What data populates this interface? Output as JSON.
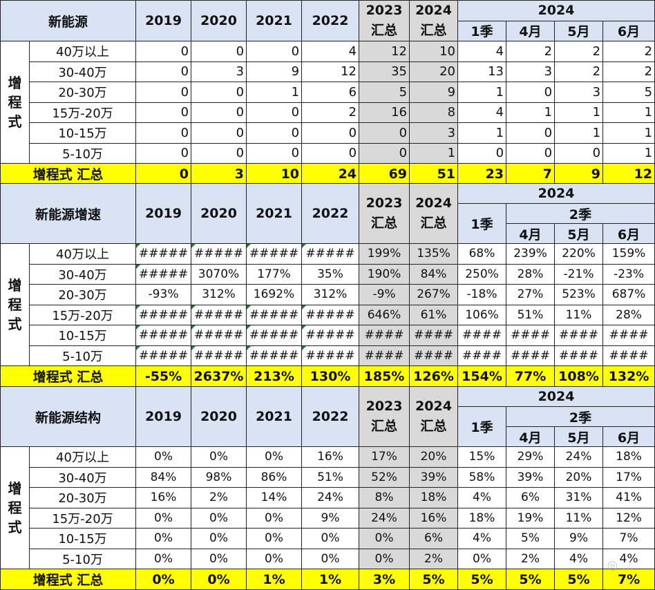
{
  "sections": [
    {
      "title": "新能源",
      "years": [
        "2019",
        "2020",
        "2021",
        "2022"
      ],
      "summary_years": [
        {
          "year": "2023",
          "sub": "汇总"
        },
        {
          "year": "2024",
          "sub": "汇总"
        }
      ],
      "group_year": "2024",
      "quarter_label": "",
      "months": [
        "1季",
        "4月",
        "5月",
        "6月"
      ],
      "side_label": "增程式",
      "rows": [
        {
          "label": "40万以上",
          "values": [
            "0",
            "0",
            "0",
            "4",
            "12",
            "10",
            "4",
            "2",
            "2",
            "2"
          ]
        },
        {
          "label": "30-40万",
          "values": [
            "0",
            "3",
            "9",
            "12",
            "35",
            "20",
            "13",
            "3",
            "2",
            "2"
          ]
        },
        {
          "label": "20-30万",
          "values": [
            "0",
            "0",
            "1",
            "6",
            "5",
            "9",
            "1",
            "0",
            "3",
            "5"
          ]
        },
        {
          "label": "15万-20万",
          "values": [
            "0",
            "0",
            "0",
            "2",
            "16",
            "8",
            "4",
            "1",
            "1",
            "1"
          ]
        },
        {
          "label": "10-15万",
          "values": [
            "0",
            "0",
            "0",
            "0",
            "0",
            "3",
            "1",
            "0",
            "1",
            "1"
          ]
        },
        {
          "label": "5-10万",
          "values": [
            "0",
            "0",
            "0",
            "0",
            "0",
            "1",
            "0",
            "0",
            "0",
            "1"
          ]
        }
      ],
      "total": {
        "label": "增程式 汇总",
        "values": [
          "0",
          "3",
          "10",
          "24",
          "69",
          "51",
          "23",
          "7",
          "9",
          "12"
        ]
      }
    },
    {
      "title": "新能源增速",
      "years": [
        "2019",
        "2020",
        "2021",
        "2022"
      ],
      "summary_years": [
        {
          "year": "2023",
          "sub": "汇总"
        },
        {
          "year": "2024",
          "sub": "汇总"
        }
      ],
      "group_year": "2024",
      "quarter_label": "2季",
      "months": [
        "1季",
        "4月",
        "5月",
        "6月"
      ],
      "side_label": "增程式",
      "rows": [
        {
          "label": "40万以上",
          "values": [
            "#####",
            "#####",
            "#####",
            "#####",
            "199%",
            "135%",
            "68%",
            "239%",
            "220%",
            "159%"
          ]
        },
        {
          "label": "30-40万",
          "values": [
            "#####",
            "3070%",
            "177%",
            "35%",
            "190%",
            "84%",
            "250%",
            "28%",
            "-21%",
            "-23%"
          ]
        },
        {
          "label": "20-30万",
          "values": [
            "-93%",
            "312%",
            "1692%",
            "312%",
            "-9%",
            "267%",
            "-18%",
            "27%",
            "523%",
            "687%"
          ]
        },
        {
          "label": "15万-20万",
          "values": [
            "#####",
            "#####",
            "#####",
            "#####",
            "646%",
            "61%",
            "106%",
            "51%",
            "11%",
            "28%"
          ]
        },
        {
          "label": "10-15万",
          "values": [
            "#####",
            "#####",
            "#####",
            "#####",
            "####",
            "####",
            "####",
            "####",
            "####",
            "####"
          ]
        },
        {
          "label": "5-10万",
          "values": [
            "#####",
            "#####",
            "#####",
            "#####",
            "####",
            "####",
            "####",
            "####",
            "####",
            "####"
          ]
        }
      ],
      "total": {
        "label": "增程式 汇总",
        "values": [
          "-55%",
          "2637%",
          "213%",
          "130%",
          "185%",
          "126%",
          "154%",
          "77%",
          "108%",
          "132%"
        ]
      }
    },
    {
      "title": "新能源结构",
      "years": [
        "2019",
        "2020",
        "2021",
        "2022"
      ],
      "summary_years": [
        {
          "year": "2023",
          "sub": "汇总"
        },
        {
          "year": "2024",
          "sub": "汇总"
        }
      ],
      "group_year": "2024",
      "quarter_label": "2季",
      "months": [
        "1季",
        "4月",
        "5月",
        "6月"
      ],
      "side_label": "增程式",
      "rows": [
        {
          "label": "40万以上",
          "values": [
            "0%",
            "0%",
            "0%",
            "16%",
            "17%",
            "20%",
            "15%",
            "29%",
            "24%",
            "18%"
          ]
        },
        {
          "label": "30-40万",
          "values": [
            "84%",
            "98%",
            "86%",
            "51%",
            "52%",
            "39%",
            "58%",
            "39%",
            "20%",
            "17%"
          ]
        },
        {
          "label": "20-30万",
          "values": [
            "16%",
            "2%",
            "14%",
            "24%",
            "8%",
            "18%",
            "4%",
            "6%",
            "31%",
            "41%"
          ]
        },
        {
          "label": "15万-20万",
          "values": [
            "0%",
            "0%",
            "0%",
            "9%",
            "24%",
            "16%",
            "18%",
            "19%",
            "11%",
            "12%"
          ]
        },
        {
          "label": "10-15万",
          "values": [
            "0%",
            "0%",
            "0%",
            "0%",
            "0%",
            "6%",
            "4%",
            "5%",
            "9%",
            "7%"
          ]
        },
        {
          "label": "5-10万",
          "values": [
            "0%",
            "0%",
            "0%",
            "0%",
            "0%",
            "2%",
            "0%",
            "2%",
            "4%",
            "4%"
          ]
        }
      ],
      "total": {
        "label": "增程式 汇总",
        "values": [
          "0%",
          "0%",
          "1%",
          "1%",
          "3%",
          "5%",
          "5%",
          "5%",
          "5%",
          "7%"
        ]
      }
    }
  ]
}
